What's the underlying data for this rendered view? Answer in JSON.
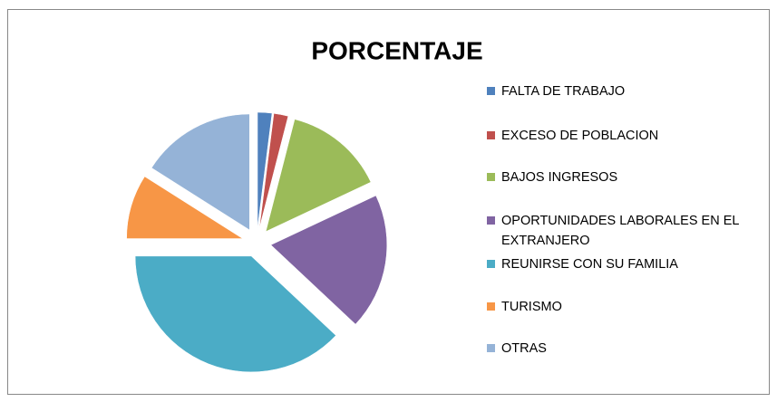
{
  "chart_data": {
    "type": "pie",
    "title": "PORCENTAJE",
    "categories": [
      "FALTA DE TRABAJO",
      "EXCESO DE POBLACION",
      "BAJOS INGRESOS",
      "OPORTUNIDADES LABORALES EN EL EXTRANJERO",
      "REUNIRSE CON SU FAMILIA",
      "TURISMO",
      "OTRAS"
    ],
    "values": [
      2,
      2,
      14,
      19,
      38,
      9,
      16
    ],
    "colors": [
      "#4f81bd",
      "#c0504d",
      "#9bbb59",
      "#8064a2",
      "#4bacc6",
      "#f79646",
      "#95b3d7"
    ],
    "legend": "right",
    "exploded": true
  }
}
